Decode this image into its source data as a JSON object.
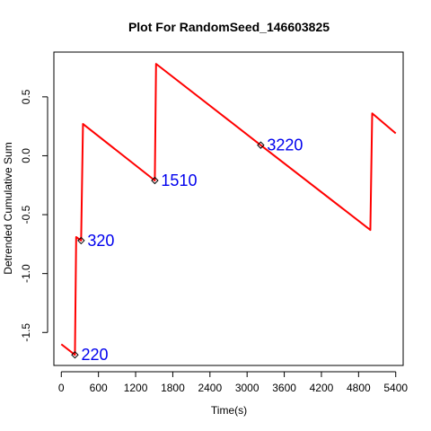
{
  "chart_data": {
    "type": "line",
    "title": "Plot For RandomSeed_146603825",
    "xlabel": "Time(s)",
    "ylabel": "Detrended Cumulative Sum",
    "xlim": [
      -120,
      5520
    ],
    "ylim": [
      -1.78,
      0.88
    ],
    "x_ticks": [
      0,
      600,
      1200,
      1800,
      2400,
      3000,
      3600,
      4200,
      4800,
      5400
    ],
    "y_ticks": [
      -1.5,
      -1.0,
      -0.5,
      0.0,
      0.5
    ],
    "y_tick_labels": [
      "-1.5",
      "-1.0",
      "-0.5",
      "0.0",
      "0.5"
    ],
    "grid": false,
    "series": [
      {
        "color": "#ff0000",
        "points": [
          [
            0,
            -1.6
          ],
          [
            220,
            -1.69
          ],
          [
            240,
            -0.69
          ],
          [
            320,
            -0.72
          ],
          [
            350,
            0.27
          ],
          [
            1510,
            -0.21
          ],
          [
            1530,
            0.78
          ],
          [
            3220,
            0.09
          ],
          [
            4990,
            -0.63
          ],
          [
            5020,
            0.36
          ],
          [
            5400,
            0.19
          ]
        ]
      }
    ],
    "annotations": [
      {
        "label": "220",
        "x": 220,
        "y": -1.69
      },
      {
        "label": "320",
        "x": 320,
        "y": -0.72
      },
      {
        "label": "1510",
        "x": 1510,
        "y": -0.21
      },
      {
        "label": "3220",
        "x": 3220,
        "y": 0.09
      }
    ]
  }
}
